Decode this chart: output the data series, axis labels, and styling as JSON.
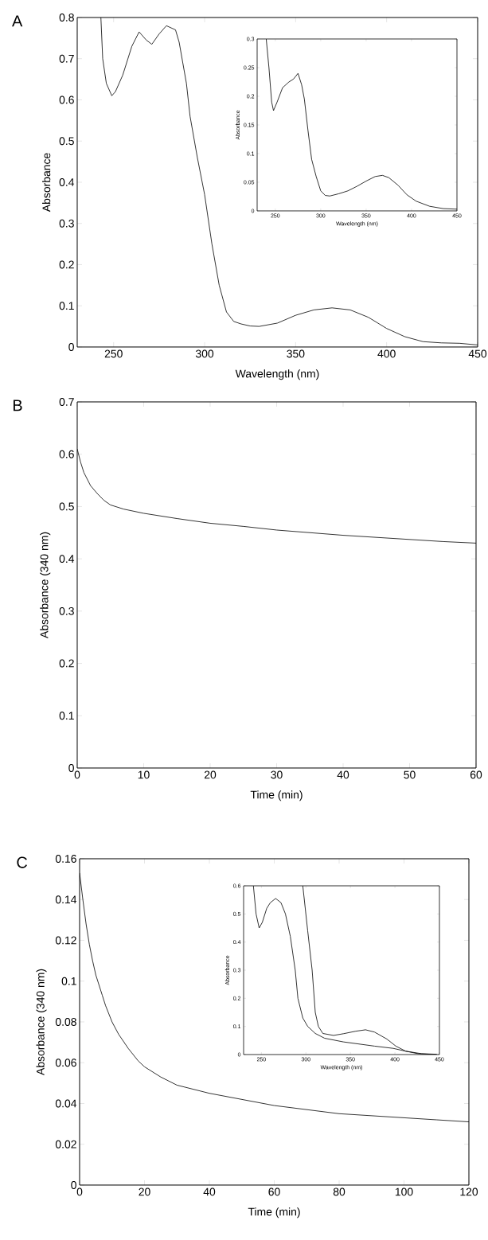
{
  "chart_data": [
    {
      "type": "line",
      "title": "A",
      "xlabel": "Wavelength (nm)",
      "ylabel": "Absorbance",
      "xlim": [
        230,
        450
      ],
      "ylim": [
        0,
        0.8
      ],
      "xticks": [
        250,
        300,
        350,
        400,
        450
      ],
      "yticks": [
        0,
        0.1,
        0.2,
        0.3,
        0.4,
        0.5,
        0.6,
        0.7,
        0.8
      ],
      "series": [
        {
          "color": "#000000",
          "x": [
            243,
            244,
            246,
            249,
            251,
            255,
            260,
            264,
            268,
            271,
            275,
            279,
            284,
            286,
            290,
            292,
            296,
            300,
            304,
            308,
            312,
            316,
            320,
            325,
            330,
            340,
            350,
            360,
            370,
            380,
            390,
            400,
            410,
            420,
            430,
            440,
            450
          ],
          "values": [
            0.8,
            0.7,
            0.64,
            0.61,
            0.62,
            0.66,
            0.73,
            0.765,
            0.745,
            0.735,
            0.76,
            0.78,
            0.77,
            0.74,
            0.64,
            0.56,
            0.46,
            0.37,
            0.25,
            0.15,
            0.085,
            0.062,
            0.056,
            0.051,
            0.05,
            0.058,
            0.077,
            0.09,
            0.095,
            0.09,
            0.072,
            0.045,
            0.025,
            0.013,
            0.01,
            0.009,
            0.005
          ]
        }
      ]
    },
    {
      "type": "line",
      "xlabel": "Wavelength (nm)",
      "ylabel": "Absorbance",
      "xlim": [
        230,
        450
      ],
      "ylim": [
        0,
        0.3
      ],
      "xticks": [
        250,
        300,
        350,
        400,
        450
      ],
      "yticks": [
        0,
        0.05,
        0.1,
        0.15,
        0.2,
        0.25,
        0.3
      ],
      "series": [
        {
          "color": "#000000",
          "x": [
            240,
            243,
            246,
            248,
            252,
            258,
            265,
            270,
            275,
            279,
            282,
            286,
            290,
            295,
            300,
            305,
            310,
            320,
            330,
            340,
            350,
            360,
            368,
            375,
            385,
            395,
            405,
            420,
            435,
            450
          ],
          "values": [
            0.3,
            0.25,
            0.19,
            0.175,
            0.19,
            0.215,
            0.225,
            0.23,
            0.24,
            0.22,
            0.195,
            0.14,
            0.09,
            0.06,
            0.035,
            0.027,
            0.026,
            0.03,
            0.035,
            0.043,
            0.052,
            0.06,
            0.062,
            0.058,
            0.045,
            0.028,
            0.017,
            0.008,
            0.004,
            0.003
          ]
        }
      ]
    },
    {
      "type": "line",
      "title": "B",
      "xlabel": "Time (min)",
      "ylabel": "Absorbance (340 nm)",
      "xlim": [
        0,
        60
      ],
      "ylim": [
        0,
        0.7
      ],
      "xticks": [
        0,
        10,
        20,
        30,
        40,
        50,
        60
      ],
      "yticks": [
        0,
        0.1,
        0.2,
        0.3,
        0.4,
        0.5,
        0.6,
        0.7
      ],
      "series": [
        {
          "color": "#000000",
          "x": [
            0,
            0.5,
            1,
            2,
            3,
            4,
            5,
            7,
            10,
            15,
            20,
            25,
            30,
            35,
            40,
            45,
            50,
            55,
            60
          ],
          "values": [
            0.61,
            0.585,
            0.565,
            0.54,
            0.525,
            0.512,
            0.503,
            0.495,
            0.487,
            0.477,
            0.468,
            0.462,
            0.455,
            0.45,
            0.445,
            0.441,
            0.437,
            0.433,
            0.43
          ]
        }
      ]
    },
    {
      "type": "line",
      "title": "C",
      "xlabel": "Time (min)",
      "ylabel": "Absorbance (340 nm)",
      "xlim": [
        0,
        120
      ],
      "ylim": [
        0,
        0.16
      ],
      "xticks": [
        0,
        20,
        40,
        60,
        80,
        100,
        120
      ],
      "yticks": [
        0,
        0.02,
        0.04,
        0.06,
        0.08,
        0.1,
        0.12,
        0.14,
        0.16
      ],
      "series": [
        {
          "color": "#000000",
          "x": [
            0,
            1,
            2,
            3,
            4,
            5,
            7,
            8,
            10,
            12,
            15,
            18,
            20,
            25,
            30,
            35,
            40,
            50,
            60,
            70,
            80,
            90,
            100,
            110,
            120
          ],
          "values": [
            0.153,
            0.14,
            0.128,
            0.118,
            0.11,
            0.103,
            0.093,
            0.088,
            0.08,
            0.074,
            0.067,
            0.061,
            0.058,
            0.053,
            0.049,
            0.047,
            0.045,
            0.042,
            0.039,
            0.037,
            0.035,
            0.034,
            0.033,
            0.032,
            0.031
          ]
        }
      ]
    },
    {
      "type": "line",
      "xlabel": "Wavelength (nm)",
      "ylabel": "Absorbance",
      "xlim": [
        230,
        450
      ],
      "ylim": [
        0,
        0.6
      ],
      "xticks": [
        250,
        300,
        350,
        400,
        450
      ],
      "yticks": [
        0,
        0.1,
        0.2,
        0.3,
        0.4,
        0.5,
        0.6
      ],
      "series": [
        {
          "color": "#000000",
          "x": [
            241,
            244,
            247.5,
            251,
            256,
            260,
            266,
            272,
            277,
            282.5,
            288,
            291,
            296.5,
            302,
            310.5,
            321,
            342,
            377,
            398,
            412,
            430,
            447
          ],
          "values": [
            0.6,
            0.5,
            0.45,
            0.47,
            0.52,
            0.54,
            0.555,
            0.54,
            0.5,
            0.42,
            0.3,
            0.2,
            0.13,
            0.1,
            0.075,
            0.058,
            0.045,
            0.03,
            0.022,
            0.012,
            0.003,
            0.001
          ]
        },
        {
          "color": "#000000",
          "x": [
            296.5,
            302,
            307,
            310.5,
            314,
            319,
            331,
            342,
            356,
            367,
            377,
            391,
            401,
            412,
            426,
            447
          ],
          "values": [
            0.6,
            0.44,
            0.3,
            0.15,
            0.1,
            0.075,
            0.068,
            0.074,
            0.083,
            0.088,
            0.08,
            0.055,
            0.03,
            0.012,
            0.003,
            0
          ]
        }
      ]
    }
  ]
}
